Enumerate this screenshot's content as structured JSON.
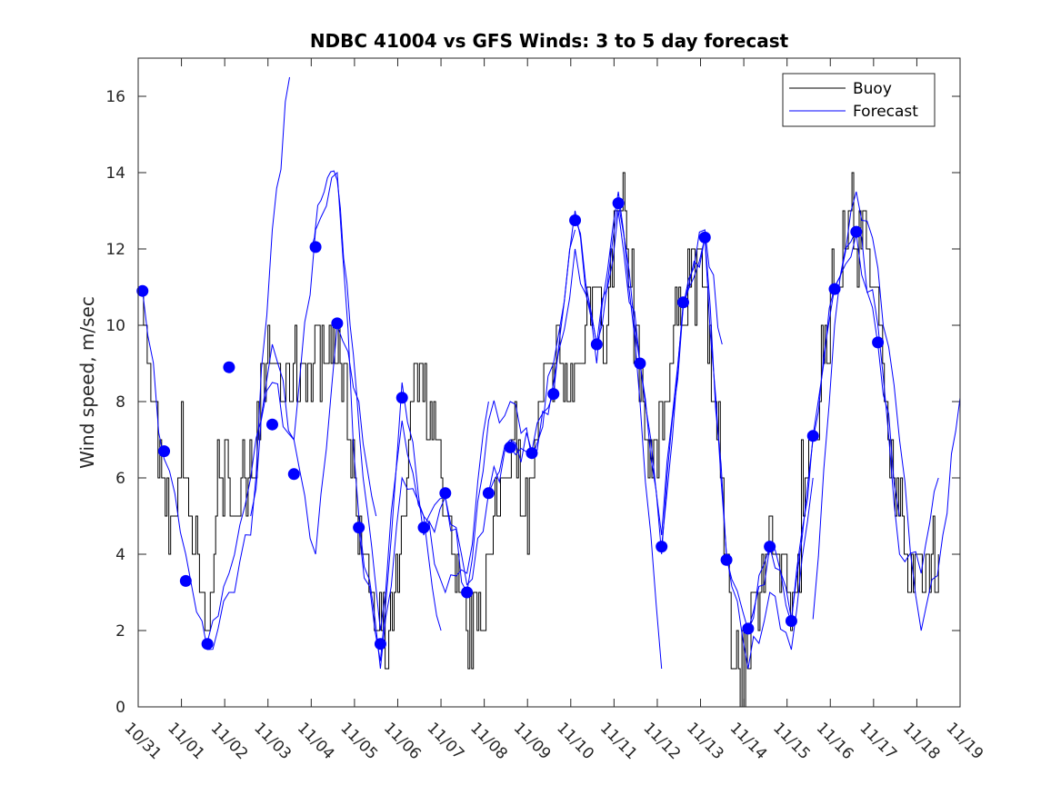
{
  "chart_data": {
    "type": "line",
    "title": "NDBC 41004 vs GFS Winds: 3 to 5 day forecast",
    "xlabel": "",
    "ylabel": "Wind speed, m/sec",
    "xlim": [
      0,
      19
    ],
    "ylim": [
      0,
      17
    ],
    "x_tick_labels": [
      "10/31",
      "11/01",
      "11/02",
      "11/03",
      "11/04",
      "11/05",
      "11/06",
      "11/07",
      "11/08",
      "11/09",
      "11/10",
      "11/11",
      "11/12",
      "11/13",
      "11/14",
      "11/15",
      "11/16",
      "11/17",
      "11/18",
      "11/19"
    ],
    "y_ticks": [
      0,
      2,
      4,
      6,
      8,
      10,
      12,
      14,
      16
    ],
    "legend": {
      "position": "top-right",
      "entries": [
        {
          "label": "Buoy",
          "color": "#000000"
        },
        {
          "label": "Forecast",
          "color": "#0000ff"
        }
      ]
    },
    "buoy_keypoints": {
      "x": [
        0,
        0.2,
        0.4,
        0.6,
        0.8,
        1.0,
        1.3,
        1.6,
        1.8,
        2.0,
        2.3,
        2.6,
        2.9,
        3.1,
        3.4,
        3.7,
        4.0,
        4.3,
        4.6,
        4.9,
        5.2,
        5.5,
        5.8,
        6.1,
        6.4,
        6.7,
        7.0,
        7.3,
        7.6,
        7.9,
        8.2,
        8.5,
        8.8,
        9.0,
        9.3,
        9.6,
        9.9,
        10.2,
        10.5,
        10.8,
        11.1,
        11.3,
        11.6,
        11.9,
        12.2,
        12.5,
        12.8,
        13.1,
        13.4,
        13.7,
        14.0,
        14.3,
        14.6,
        14.9,
        15.2,
        15.5,
        15.8,
        16.1,
        16.4,
        16.7,
        17.0,
        17.3,
        17.6,
        17.9,
        18.2,
        18.5
      ],
      "y": [
        12,
        9,
        7.5,
        5.5,
        4.5,
        7,
        4,
        1.5,
        5.5,
        6,
        5,
        6.5,
        8.5,
        9,
        8,
        9,
        9,
        9.5,
        9.5,
        7,
        4,
        2,
        1.5,
        4,
        9,
        8,
        6,
        3,
        2,
        2.5,
        4.5,
        6.5,
        6,
        5,
        8,
        9,
        8.5,
        9,
        11.5,
        9.5,
        14,
        12,
        8.5,
        6,
        8.5,
        10.5,
        11.5,
        11,
        7,
        2,
        1,
        3,
        4.5,
        3,
        2.5,
        6,
        9,
        11,
        13,
        12.5,
        11,
        8,
        5,
        3,
        3.5,
        4
      ]
    },
    "forecast_markers": {
      "x": [
        0.1,
        0.6,
        1.1,
        1.6,
        2.1,
        3.1,
        3.6,
        4.1,
        4.6,
        5.1,
        5.6,
        6.1,
        6.6,
        7.1,
        7.6,
        8.1,
        8.6,
        9.1,
        9.6,
        10.1,
        10.6,
        11.1,
        11.6,
        12.1,
        12.6,
        13.1,
        13.6,
        14.1,
        14.6,
        15.1,
        15.6,
        16.1,
        16.6,
        17.1
      ],
      "y": [
        10.9,
        6.7,
        3.3,
        1.65,
        8.9,
        7.4,
        6.1,
        12.05,
        10.05,
        4.7,
        1.65,
        8.1,
        4.7,
        5.6,
        3.0,
        5.6,
        6.8,
        6.65,
        8.2,
        12.75,
        9.5,
        13.2,
        9.0,
        4.2,
        10.6,
        12.3,
        3.85,
        2.05,
        4.2,
        2.25,
        7.1,
        10.95,
        12.45,
        9.55
      ]
    },
    "forecast_traces": [
      {
        "name": "Forecast",
        "x": [
          0.1,
          0.6,
          1.1,
          1.6,
          2.1,
          2.6,
          3.1,
          3.5
        ],
        "y": [
          10.9,
          6.5,
          4,
          1.5,
          3,
          4.5,
          12.5,
          16.5
        ]
      },
      {
        "name": "Forecast",
        "x": [
          1.6,
          2.1,
          2.6,
          3.1,
          3.6,
          4.1,
          4.6,
          5.1,
          5.5
        ],
        "y": [
          1.7,
          3.5,
          6,
          8.5,
          7,
          4,
          10,
          8,
          5
        ]
      },
      {
        "name": "Forecast",
        "x": [
          2.6,
          3.1,
          3.6,
          4.1,
          4.6,
          5.1,
          5.6,
          6.1,
          6.6,
          7.0
        ],
        "y": [
          5,
          9.5,
          7,
          12.5,
          14,
          5,
          1,
          6,
          5,
          2
        ]
      },
      {
        "name": "Forecast",
        "x": [
          4.0,
          4.3,
          4.6,
          4.9,
          5.2,
          5.6,
          6.1,
          6.6,
          7.1,
          7.6,
          8.1
        ],
        "y": [
          12,
          13.5,
          13.8,
          10,
          6,
          2,
          7.5,
          5,
          3,
          3.5,
          8
        ]
      },
      {
        "name": "Forecast",
        "x": [
          5.1,
          5.6,
          6.1,
          6.6,
          7.1,
          7.6,
          8.1,
          8.6,
          9.1,
          9.6,
          10.1
        ],
        "y": [
          4.7,
          1.2,
          8.5,
          4.5,
          5.5,
          3,
          7.5,
          8,
          6.5,
          9,
          12.5
        ]
      },
      {
        "name": "Forecast",
        "x": [
          6.6,
          7.1,
          7.6,
          8.1,
          8.6,
          9.1,
          9.6,
          10.1,
          10.6,
          11.1,
          11.6,
          12.1
        ],
        "y": [
          4.7,
          5.5,
          3.2,
          5.6,
          7,
          6.7,
          8.2,
          13,
          9,
          13.5,
          8,
          1
        ]
      },
      {
        "name": "Forecast",
        "x": [
          8.1,
          8.6,
          9.1,
          9.6,
          10.1,
          10.6,
          11.1,
          11.6,
          12.1,
          12.6,
          13.1,
          13.5
        ],
        "y": [
          5.6,
          6.8,
          6.7,
          8.5,
          12,
          9.5,
          13,
          9,
          4,
          10.5,
          12.5,
          9.5
        ]
      },
      {
        "name": "Forecast",
        "x": [
          10.1,
          10.6,
          11.1,
          11.6,
          12.1,
          12.6,
          13.1,
          13.6,
          14.1,
          14.6,
          15.1,
          15.6
        ],
        "y": [
          12.8,
          9.5,
          13.2,
          9,
          4.5,
          10.5,
          12.3,
          4,
          1,
          3,
          1.5,
          6
        ]
      },
      {
        "name": "Forecast",
        "x": [
          12.1,
          12.6,
          13.1,
          13.6,
          14.1,
          14.6,
          15.1,
          15.6,
          16.1,
          16.6,
          17.1,
          17.6
        ],
        "y": [
          4.2,
          10.6,
          12.3,
          3.9,
          2,
          4.2,
          2.2,
          7.1,
          11,
          12.4,
          9.5,
          5
        ]
      },
      {
        "name": "Forecast",
        "x": [
          14.1,
          14.6,
          15.1,
          15.6,
          16.1,
          16.6,
          17.1,
          17.6,
          18.1,
          18.5
        ],
        "y": [
          2,
          4.2,
          2.3,
          7,
          11,
          12.5,
          10,
          4,
          3.5,
          6
        ]
      },
      {
        "name": "Forecast",
        "x": [
          15.6,
          16.1,
          16.6,
          17.1,
          17.6,
          18.1,
          18.6,
          19.0
        ],
        "y": [
          2.3,
          10,
          13.5,
          11.5,
          7,
          2,
          4.5,
          8.1
        ]
      }
    ]
  }
}
